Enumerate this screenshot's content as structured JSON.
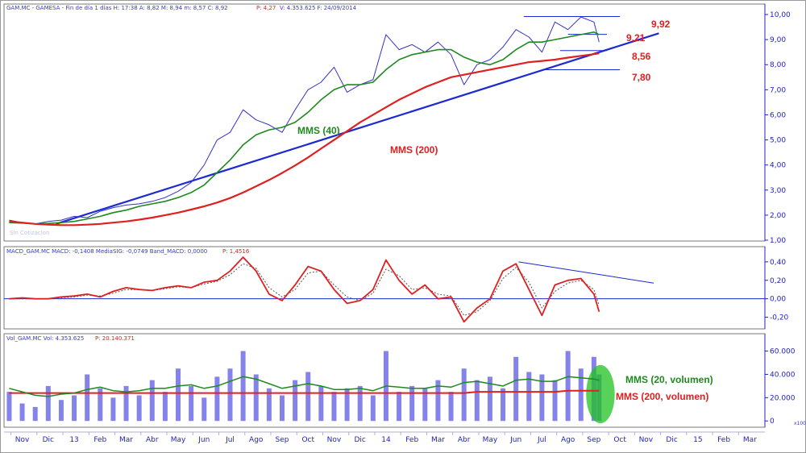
{
  "header": {
    "price": "GAM.MC - GAMESA - Fin de día 1 días  H: 17:38  A: 8,82  M: 8,94  m: 8,57  C: 8,92",
    "price_change": "P: 4,27",
    "price_tail": "V: 4.353.625  F: 24/09/2014",
    "macd": "MACD_GAM.MC  MACD: -0,1408  MediaSIG: -0,0749  Band_MACD: 0,0000",
    "macd_change": "P: 1,4516",
    "vol": "Vol_GAM.MC  Vol: 4.353.625",
    "vol_change": "P: 20.140.371"
  },
  "watermark": "Sin Cotizacion",
  "corner_label": "x100",
  "annotations": {
    "level_992": "9,92",
    "level_921": "9,21",
    "level_856": "8,56",
    "level_780": "7,80",
    "mms40": "MMS (40)",
    "mms200": "MMS (200)",
    "vol20": "MMS (20, volumen)",
    "vol200": "MMS (200, volumen)"
  },
  "colors": {
    "price": "#3232c8",
    "ma40": "#1e8a1e",
    "ma200": "#e02020",
    "trend": "#1a2ad0",
    "macd": "#e02020",
    "signal": "#555555",
    "volume": "#6e6ee6",
    "highlight": "#1fc21f",
    "axis": "#2020c8"
  },
  "x_axis": {
    "months": [
      {
        "label": "Nov",
        "t": 0.5
      },
      {
        "label": "Dic",
        "t": 1.5
      },
      {
        "label": "13",
        "t": 2.5
      },
      {
        "label": "Feb",
        "t": 3.5
      },
      {
        "label": "Mar",
        "t": 4.5
      },
      {
        "label": "Abr",
        "t": 5.5
      },
      {
        "label": "May",
        "t": 6.5
      },
      {
        "label": "Jun",
        "t": 7.5
      },
      {
        "label": "Jul",
        "t": 8.5
      },
      {
        "label": "Ago",
        "t": 9.5
      },
      {
        "label": "Sep",
        "t": 10.5
      },
      {
        "label": "Oct",
        "t": 11.5
      },
      {
        "label": "Nov",
        "t": 12.5
      },
      {
        "label": "Dic",
        "t": 13.5
      },
      {
        "label": "14",
        "t": 14.5
      },
      {
        "label": "Feb",
        "t": 15.5
      },
      {
        "label": "Mar",
        "t": 16.5
      },
      {
        "label": "Abr",
        "t": 17.5
      },
      {
        "label": "May",
        "t": 18.5
      },
      {
        "label": "Jun",
        "t": 19.5
      },
      {
        "label": "Jul",
        "t": 20.5
      },
      {
        "label": "Ago",
        "t": 21.5
      },
      {
        "label": "Sep",
        "t": 22.5
      },
      {
        "label": "Oct",
        "t": 23.5
      },
      {
        "label": "Nov",
        "t": 24.5
      },
      {
        "label": "Dic",
        "t": 25.5
      },
      {
        "label": "15",
        "t": 26.5
      },
      {
        "label": "Feb",
        "t": 27.5
      },
      {
        "label": "Mar",
        "t": 28.5
      }
    ]
  },
  "chart_data": [
    {
      "type": "line",
      "panel": "price",
      "ylim": [
        1.0,
        10.0
      ],
      "yticks": [
        {
          "v": 10,
          "label": "10,00"
        },
        {
          "v": 9,
          "label": "9,00"
        },
        {
          "v": 8,
          "label": "8,00"
        },
        {
          "v": 7,
          "label": "7,00"
        },
        {
          "v": 6,
          "label": "6,00"
        },
        {
          "v": 5,
          "label": "5,00"
        },
        {
          "v": 4,
          "label": "4,00"
        },
        {
          "v": 3,
          "label": "3,00"
        },
        {
          "v": 2,
          "label": "2,00"
        },
        {
          "v": 1,
          "label": "1,00"
        }
      ],
      "x": [
        0,
        0.5,
        1,
        1.5,
        2,
        2.5,
        3,
        3.5,
        4,
        4.5,
        5,
        5.5,
        6,
        6.5,
        7,
        7.5,
        8,
        8.5,
        9,
        9.5,
        10,
        10.5,
        11,
        11.5,
        12,
        12.5,
        13,
        13.5,
        14,
        14.5,
        15,
        15.5,
        16,
        16.5,
        17,
        17.5,
        18,
        18.5,
        19,
        19.5,
        20,
        20.5,
        21,
        21.5,
        22,
        22.5,
        22.7
      ],
      "series": [
        {
          "name": "Precio",
          "values": [
            1.8,
            1.7,
            1.65,
            1.75,
            1.8,
            1.95,
            1.9,
            2.15,
            2.3,
            2.4,
            2.45,
            2.55,
            2.7,
            2.95,
            3.3,
            4.0,
            5.0,
            5.3,
            6.2,
            5.8,
            5.6,
            5.3,
            6.2,
            7.0,
            7.3,
            7.9,
            6.9,
            7.2,
            7.4,
            9.2,
            8.6,
            8.8,
            8.5,
            8.9,
            8.4,
            7.2,
            8.0,
            8.2,
            8.7,
            9.4,
            9.1,
            8.5,
            9.7,
            9.4,
            9.9,
            9.7,
            8.9
          ]
        },
        {
          "name": "MMS (40)",
          "values": [
            1.7,
            1.68,
            1.65,
            1.67,
            1.7,
            1.75,
            1.85,
            1.95,
            2.1,
            2.2,
            2.35,
            2.45,
            2.55,
            2.7,
            2.9,
            3.2,
            3.7,
            4.2,
            4.8,
            5.2,
            5.4,
            5.5,
            5.7,
            6.1,
            6.6,
            7.0,
            7.2,
            7.2,
            7.3,
            7.8,
            8.2,
            8.4,
            8.5,
            8.6,
            8.6,
            8.3,
            8.1,
            8.0,
            8.2,
            8.6,
            8.9,
            8.9,
            9.0,
            9.1,
            9.2,
            9.3,
            9.2
          ]
        },
        {
          "name": "MMS (200)",
          "values": [
            1.75,
            1.7,
            1.65,
            1.62,
            1.6,
            1.6,
            1.62,
            1.65,
            1.7,
            1.75,
            1.82,
            1.9,
            2.0,
            2.1,
            2.22,
            2.35,
            2.5,
            2.68,
            2.9,
            3.15,
            3.4,
            3.68,
            3.98,
            4.3,
            4.65,
            5.0,
            5.35,
            5.7,
            6.0,
            6.3,
            6.6,
            6.85,
            7.1,
            7.3,
            7.5,
            7.6,
            7.7,
            7.8,
            7.9,
            8.0,
            8.1,
            8.15,
            8.2,
            8.28,
            8.35,
            8.42,
            8.45
          ]
        }
      ],
      "trendline": {
        "x": [
          1.8,
          25.0
        ],
        "y": [
          1.65,
          9.25
        ]
      },
      "levels": [
        {
          "y": 9.92,
          "x": [
            19.8,
            23.5
          ]
        },
        {
          "y": 9.21,
          "x": [
            21.5,
            23.0
          ]
        },
        {
          "y": 8.56,
          "x": [
            21.2,
            23.0
          ]
        },
        {
          "y": 7.8,
          "x": [
            20.5,
            23.5
          ]
        }
      ]
    },
    {
      "type": "line",
      "panel": "macd",
      "ylim": [
        -0.3,
        0.46
      ],
      "yticks": [
        {
          "v": 0.4,
          "label": "0,40"
        },
        {
          "v": 0.2,
          "label": "0,20"
        },
        {
          "v": 0.0,
          "label": "0,00"
        },
        {
          "v": -0.2,
          "label": "-0,20"
        }
      ],
      "x": [
        0,
        0.5,
        1,
        1.5,
        2,
        2.5,
        3,
        3.5,
        4,
        4.5,
        5,
        5.5,
        6,
        6.5,
        7,
        7.5,
        8,
        8.5,
        9,
        9.5,
        10,
        10.5,
        11,
        11.5,
        12,
        12.5,
        13,
        13.5,
        14,
        14.5,
        15,
        15.5,
        16,
        16.5,
        17,
        17.5,
        18,
        18.5,
        19,
        19.5,
        20,
        20.5,
        21,
        21.5,
        22,
        22.5,
        22.7
      ],
      "series": [
        {
          "name": "MACD",
          "values": [
            0.0,
            0.01,
            0.0,
            0.0,
            0.02,
            0.03,
            0.05,
            0.02,
            0.08,
            0.12,
            0.1,
            0.09,
            0.12,
            0.14,
            0.12,
            0.18,
            0.2,
            0.3,
            0.45,
            0.3,
            0.05,
            -0.02,
            0.15,
            0.35,
            0.3,
            0.1,
            -0.05,
            -0.02,
            0.1,
            0.42,
            0.2,
            0.05,
            0.15,
            0.0,
            0.02,
            -0.25,
            -0.1,
            0.0,
            0.3,
            0.38,
            0.1,
            -0.18,
            0.15,
            0.2,
            0.22,
            0.05,
            -0.14
          ]
        },
        {
          "name": "MediaSIG",
          "values": [
            0.0,
            0.0,
            0.0,
            0.0,
            0.01,
            0.02,
            0.04,
            0.03,
            0.06,
            0.1,
            0.1,
            0.09,
            0.11,
            0.13,
            0.12,
            0.16,
            0.19,
            0.26,
            0.38,
            0.33,
            0.12,
            0.02,
            0.1,
            0.28,
            0.3,
            0.15,
            0.02,
            -0.02,
            0.06,
            0.32,
            0.25,
            0.1,
            0.12,
            0.05,
            0.03,
            -0.18,
            -0.14,
            -0.02,
            0.22,
            0.34,
            0.18,
            -0.1,
            0.08,
            0.17,
            0.2,
            0.1,
            -0.07
          ]
        }
      ],
      "trendline": {
        "x": [
          19.6,
          24.8
        ],
        "y": [
          0.4,
          0.17
        ]
      }
    },
    {
      "type": "bar",
      "panel": "volume",
      "ylim": [
        -4,
        68
      ],
      "yticks": [
        {
          "v": 60,
          "label": "60.000"
        },
        {
          "v": 40,
          "label": "40.000"
        },
        {
          "v": 20,
          "label": "20.000"
        },
        {
          "v": 0,
          "label": "0"
        }
      ],
      "x": [
        0,
        0.5,
        1,
        1.5,
        2,
        2.5,
        3,
        3.5,
        4,
        4.5,
        5,
        5.5,
        6,
        6.5,
        7,
        7.5,
        8,
        8.5,
        9,
        9.5,
        10,
        10.5,
        11,
        11.5,
        12,
        12.5,
        13,
        13.5,
        14,
        14.5,
        15,
        15.5,
        16,
        16.5,
        17,
        17.5,
        18,
        18.5,
        19,
        19.5,
        20,
        20.5,
        21,
        21.5,
        22,
        22.5,
        22.7
      ],
      "values": [
        25,
        15,
        12,
        30,
        18,
        22,
        40,
        28,
        20,
        30,
        22,
        35,
        25,
        45,
        30,
        20,
        38,
        45,
        60,
        40,
        28,
        22,
        35,
        42,
        30,
        25,
        28,
        30,
        22,
        60,
        25,
        30,
        28,
        35,
        25,
        45,
        35,
        38,
        28,
        55,
        42,
        40,
        35,
        60,
        45,
        55,
        40
      ],
      "series": [
        {
          "name": "MMS (20, volumen)",
          "values": [
            28,
            25,
            22,
            21,
            23,
            24,
            27,
            29,
            26,
            25,
            26,
            28,
            28,
            30,
            31,
            28,
            30,
            34,
            38,
            36,
            32,
            28,
            30,
            32,
            30,
            27,
            27,
            28,
            26,
            30,
            29,
            28,
            28,
            30,
            29,
            33,
            34,
            32,
            30,
            35,
            36,
            34,
            34,
            38,
            37,
            36,
            35
          ]
        },
        {
          "name": "MMS (200, volumen)",
          "values": [
            24,
            24,
            24,
            24,
            24,
            24,
            24,
            24,
            24,
            24,
            24,
            24,
            24,
            24,
            24,
            24,
            24,
            24,
            24,
            24,
            24,
            24,
            24,
            24,
            24,
            24,
            24,
            24,
            24,
            24,
            24,
            24,
            24,
            24,
            24,
            24,
            25,
            25,
            25,
            25,
            25,
            25,
            25,
            26,
            26,
            26,
            26
          ]
        }
      ],
      "highlight": {
        "x": [
          22.2,
          23.3
        ],
        "y": [
          -2,
          48
        ]
      }
    }
  ]
}
